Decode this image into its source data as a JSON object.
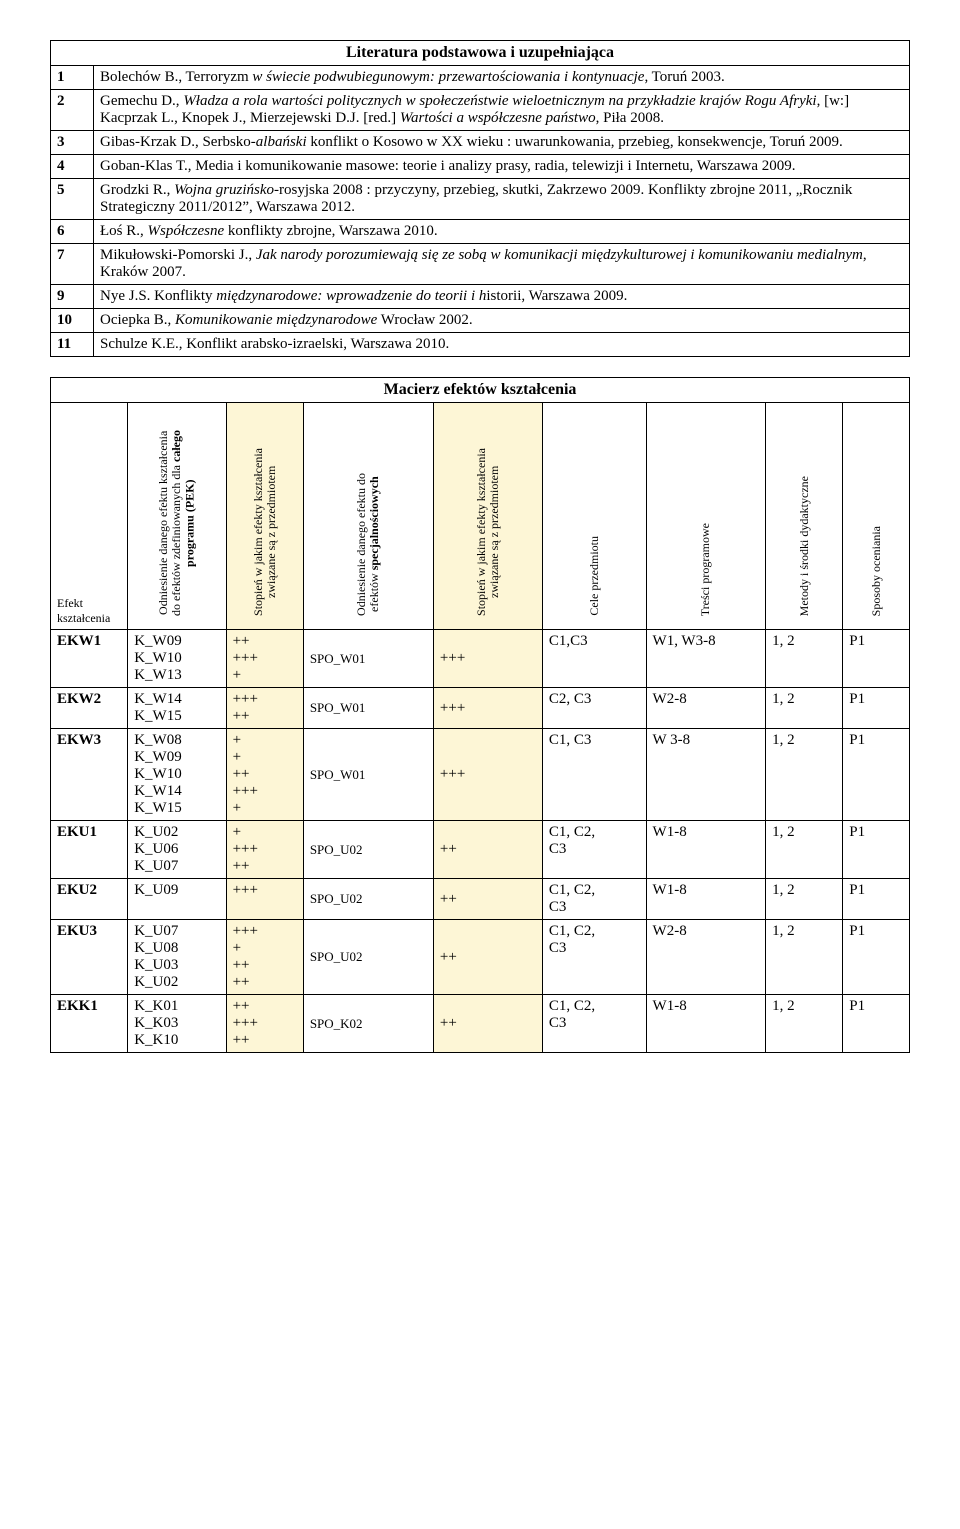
{
  "literature": {
    "title": "Literatura podstawowa i uzupełniająca",
    "rows": [
      {
        "num": "1",
        "html": "Bolechów B., Terroryzm <i>w świecie podwubiegunowym: przewartościowania i kontynuacje</i>, Toruń 2003."
      },
      {
        "num": "2",
        "html": "Gemechu D., <i>Władza a rola wartości politycznych w społeczeństwie wieloetnicznym na przykładzie krajów Rogu Afryki</i>, [w:] Kacprzak L., Knopek J., Mierzejewski D.J. [red.] <i>Wartości a współczesne państwo</i>, Piła 2008."
      },
      {
        "num": "3",
        "html": "Gibas-Krzak D., Serbsko-<i>albański</i> konflikt o Kosowo w XX wieku : uwarunkowania, przebieg, konsekwencje, Toruń 2009."
      },
      {
        "num": "4",
        "html": "Goban-Klas T., Media i komunikowanie masowe: teorie i analizy prasy, radia, telewizji i Internetu, Warszawa 2009."
      },
      {
        "num": "5",
        "html": "Grodzki R., <i>Wojna gruzińsko</i>-rosyjska 2008 : przyczyny, przebieg, skutki, Zakrzewo 2009. Konflikty zbrojne 2011, „Rocznik Strategiczny 2011/2012”, Warszawa 2012."
      },
      {
        "num": "6",
        "html": "Łoś R., <i>Współczesne</i> konflikty zbrojne, Warszawa 2010."
      },
      {
        "num": "7",
        "html": "Mikułowski-Pomorski J., <i>Jak narody porozumiewają się ze sobą w komunikacji międzykulturowej i komunikowaniu medialnym</i>, Kraków 2007."
      },
      {
        "num": "9",
        "html": "Nye J.S. Konflikty <i>międzynarodowe: wprowadzenie do teorii i h</i>istorii, Warszawa 2009."
      },
      {
        "num": "10",
        "html": "Ociepka B., <i>Komunikowanie międzynarodowe</i> Wrocław 2002."
      },
      {
        "num": "11",
        "html": "Schulze K.E., Konflikt arabsko-izraelski, Warszawa 2010."
      }
    ]
  },
  "matrix": {
    "title": "Macierz efektów kształcenia",
    "headers": {
      "efekt": "Efekt\nkształcenia",
      "pek": "Odniesienie danego efektu kształcenia\ndo efektów zdefiniowanych dla całego\nprogramu (PEK)",
      "deg1": "Stopień w jakim efekty kształcenia\nzwiązane są z przedmiotem",
      "spec": "Odniesienie danego efektu do\nefektów specjalnościowych",
      "deg2": "Stopień w jakim efekty kształcenia\nzwiązane są z przedmiotem",
      "cele": "Cele przedmiotu",
      "tresci": "Treści programowe",
      "metody": "Metody i środki dydaktyczne",
      "sposoby": "Sposoby oceniania"
    },
    "rows": [
      {
        "efekt": "EKW1",
        "pek": "K_W09\nK_W10\nK_W13",
        "deg1": "++\n+++\n+",
        "spec": "SPO_W01",
        "deg2": "+++",
        "cele": "C1,C3",
        "tresci": "W1, W3-8",
        "metody": "1, 2",
        "sposoby": "P1"
      },
      {
        "efekt": "EKW2",
        "pek": "K_W14\nK_W15",
        "deg1": "+++\n++",
        "spec": "SPO_W01",
        "deg2": "+++",
        "cele": "C2, C3",
        "tresci": "W2-8",
        "metody": "1, 2",
        "sposoby": "P1"
      },
      {
        "efekt": "EKW3",
        "pek": "K_W08\nK_W09\nK_W10\nK_W14\nK_W15",
        "deg1": "+\n+\n++\n+++\n+",
        "spec": "SPO_W01",
        "deg2": "+++",
        "cele": "C1, C3",
        "tresci": "W 3-8",
        "metody": "1, 2",
        "sposoby": "P1"
      },
      {
        "efekt": "EKU1",
        "pek": "K_U02\nK_U06\nK_U07",
        "deg1": "+\n+++\n++",
        "spec": "SPO_U02",
        "deg2": "++",
        "cele": "C1, C2,\nC3",
        "tresci": "W1-8",
        "metody": "1, 2",
        "sposoby": "P1"
      },
      {
        "efekt": "EKU2",
        "pek": "K_U09",
        "deg1": "+++",
        "spec": "SPO_U02",
        "deg2": "++",
        "cele": "C1, C2,\nC3",
        "tresci": "W1-8",
        "metody": "1, 2",
        "sposoby": "P1"
      },
      {
        "efekt": "EKU3",
        "pek": "K_U07\nK_U08\nK_U03\nK_U02",
        "deg1": "+++\n+\n++\n++",
        "spec": "SPO_U02",
        "deg2": "++",
        "cele": "C1, C2,\nC3",
        "tresci": "W2-8",
        "metody": "1, 2",
        "sposoby": "P1"
      },
      {
        "efekt": "EKK1",
        "pek": "K_K01\nK_K03\nK_K10",
        "deg1": "++\n+++\n++",
        "spec": "SPO_K02",
        "deg2": "++",
        "cele": "C1, C2,\nC3",
        "tresci": "W1-8",
        "metody": "1, 2",
        "sposoby": "P1"
      }
    ]
  }
}
